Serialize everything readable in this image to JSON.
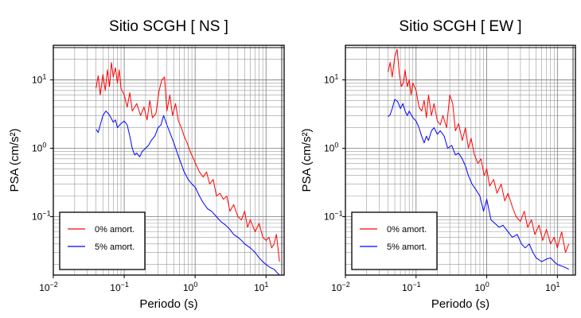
{
  "chart_data": [
    {
      "type": "line",
      "title": "Sitio SCGH [ NS ]",
      "xlabel": "Periodo (s)",
      "ylabel": "PSA (cm/s²)",
      "xscale": "log",
      "yscale": "log",
      "xlim": [
        0.01,
        18
      ],
      "ylim": [
        0.014,
        32
      ],
      "grid": true,
      "legend": "bottom-left",
      "x_ticks": [
        {
          "v": 0.01,
          "b": "10",
          "e": "−2"
        },
        {
          "v": 0.1,
          "b": "10",
          "e": "−1"
        },
        {
          "v": 1,
          "b": "10",
          "e": "0"
        },
        {
          "v": 10,
          "b": "10",
          "e": "1"
        }
      ],
      "y_ticks": [
        {
          "v": 0.1,
          "b": "10",
          "e": "−1"
        },
        {
          "v": 1,
          "b": "10",
          "e": "0"
        },
        {
          "v": 10,
          "b": "10",
          "e": "1"
        }
      ],
      "series": [
        {
          "name": "0% amort.",
          "color": "#ff0000",
          "x": [
            0.04,
            0.043,
            0.046,
            0.05,
            0.054,
            0.058,
            0.062,
            0.066,
            0.07,
            0.075,
            0.08,
            0.085,
            0.09,
            0.1,
            0.11,
            0.12,
            0.13,
            0.15,
            0.17,
            0.19,
            0.21,
            0.23,
            0.25,
            0.28,
            0.31,
            0.34,
            0.37,
            0.4,
            0.44,
            0.48,
            0.53,
            0.58,
            0.64,
            0.7,
            0.77,
            0.85,
            0.95,
            1.05,
            1.15,
            1.3,
            1.45,
            1.6,
            1.8,
            2.0,
            2.25,
            2.5,
            2.8,
            3.1,
            3.5,
            4.0,
            4.5,
            5.0,
            5.5,
            6.0,
            7.0,
            8.0,
            9.0,
            10.0,
            11.0,
            12.0,
            13.0,
            14.0,
            15.5
          ],
          "y": [
            7.5,
            11.5,
            6.0,
            12.0,
            7.0,
            14.0,
            8.0,
            18.0,
            11.0,
            15.0,
            9.0,
            14.0,
            7.5,
            6.0,
            4.0,
            6.5,
            3.5,
            4.5,
            3.0,
            4.0,
            2.6,
            5.0,
            2.8,
            3.2,
            7.0,
            10.0,
            11.0,
            3.5,
            6.0,
            3.0,
            4.5,
            2.5,
            2.0,
            1.5,
            1.2,
            0.9,
            0.7,
            0.55,
            0.45,
            0.38,
            0.45,
            0.3,
            0.35,
            0.2,
            0.22,
            0.18,
            0.2,
            0.12,
            0.15,
            0.1,
            0.09,
            0.12,
            0.07,
            0.09,
            0.06,
            0.08,
            0.05,
            0.045,
            0.05,
            0.035,
            0.04,
            0.055,
            0.022
          ]
        },
        {
          "name": "5% amort.",
          "color": "#0000ff",
          "x": [
            0.04,
            0.043,
            0.046,
            0.05,
            0.055,
            0.06,
            0.065,
            0.07,
            0.075,
            0.08,
            0.09,
            0.1,
            0.11,
            0.12,
            0.13,
            0.14,
            0.15,
            0.165,
            0.18,
            0.2,
            0.22,
            0.24,
            0.27,
            0.3,
            0.33,
            0.36,
            0.4,
            0.45,
            0.5,
            0.55,
            0.6,
            0.7,
            0.8,
            0.9,
            1.0,
            1.15,
            1.3,
            1.5,
            1.7,
            2.0,
            2.3,
            2.7,
            3.1,
            3.5,
            4.0,
            4.5,
            5.0,
            6.0,
            7.0,
            8.0,
            9.0,
            10.0,
            11.5,
            13.0,
            14.5,
            15.5
          ],
          "y": [
            1.9,
            1.7,
            2.2,
            3.0,
            3.5,
            3.2,
            2.8,
            2.4,
            2.6,
            2.0,
            2.3,
            2.5,
            2.2,
            1.5,
            1.0,
            0.8,
            0.85,
            0.75,
            0.9,
            1.0,
            1.1,
            1.3,
            1.5,
            2.0,
            2.2,
            3.0,
            2.2,
            1.6,
            1.2,
            0.9,
            0.7,
            0.45,
            0.35,
            0.3,
            0.27,
            0.2,
            0.16,
            0.13,
            0.12,
            0.1,
            0.085,
            0.075,
            0.065,
            0.055,
            0.05,
            0.045,
            0.04,
            0.035,
            0.03,
            0.025,
            0.022,
            0.02,
            0.018,
            0.017,
            0.015,
            0.014
          ]
        }
      ]
    },
    {
      "type": "line",
      "title": "Sitio SCGH [ EW ]",
      "xlabel": "Periodo (s)",
      "ylabel": "PSA (cm/s²)",
      "xscale": "log",
      "yscale": "log",
      "xlim": [
        0.01,
        18
      ],
      "ylim": [
        0.014,
        32
      ],
      "grid": true,
      "legend": "bottom-left",
      "x_ticks": [
        {
          "v": 0.01,
          "b": "10",
          "e": "−2"
        },
        {
          "v": 0.1,
          "b": "10",
          "e": "−1"
        },
        {
          "v": 1,
          "b": "10",
          "e": "0"
        },
        {
          "v": 10,
          "b": "10",
          "e": "1"
        }
      ],
      "y_ticks": [
        {
          "v": 0.1,
          "b": "10",
          "e": "−1"
        },
        {
          "v": 1,
          "b": "10",
          "e": "0"
        },
        {
          "v": 10,
          "b": "10",
          "e": "1"
        }
      ],
      "series": [
        {
          "name": "0% amort.",
          "color": "#ff0000",
          "x": [
            0.04,
            0.043,
            0.046,
            0.05,
            0.054,
            0.058,
            0.062,
            0.066,
            0.07,
            0.075,
            0.08,
            0.085,
            0.09,
            0.1,
            0.11,
            0.12,
            0.13,
            0.14,
            0.15,
            0.165,
            0.18,
            0.2,
            0.22,
            0.24,
            0.27,
            0.3,
            0.33,
            0.36,
            0.4,
            0.45,
            0.5,
            0.55,
            0.6,
            0.67,
            0.75,
            0.83,
            0.92,
            1.0,
            1.1,
            1.25,
            1.4,
            1.6,
            1.8,
            2.0,
            2.3,
            2.6,
            3.0,
            3.4,
            3.8,
            4.3,
            4.8,
            5.5,
            6.2,
            7.0,
            8.0,
            9.0,
            10.0,
            11.5,
            13.0,
            14.5
          ],
          "y": [
            13.0,
            18.0,
            11.0,
            22.0,
            28.0,
            12.0,
            8.0,
            9.0,
            14.0,
            8.0,
            10.0,
            6.0,
            9.0,
            7.0,
            4.0,
            3.5,
            5.0,
            2.8,
            6.0,
            3.0,
            4.5,
            2.5,
            2.2,
            3.0,
            2.0,
            6.0,
            4.5,
            1.8,
            2.3,
            1.3,
            2.0,
            1.0,
            1.4,
            0.8,
            0.6,
            0.7,
            0.4,
            0.5,
            0.28,
            0.35,
            0.22,
            0.3,
            0.17,
            0.22,
            0.14,
            0.1,
            0.085,
            0.12,
            0.07,
            0.09,
            0.055,
            0.075,
            0.045,
            0.065,
            0.04,
            0.05,
            0.035,
            0.06,
            0.03,
            0.04
          ]
        },
        {
          "name": "5% amort.",
          "color": "#0000ff",
          "x": [
            0.04,
            0.043,
            0.046,
            0.05,
            0.055,
            0.06,
            0.065,
            0.07,
            0.075,
            0.08,
            0.09,
            0.1,
            0.11,
            0.12,
            0.13,
            0.14,
            0.15,
            0.165,
            0.18,
            0.2,
            0.22,
            0.25,
            0.28,
            0.32,
            0.36,
            0.4,
            0.45,
            0.5,
            0.55,
            0.62,
            0.7,
            0.8,
            0.9,
            1.0,
            1.15,
            1.3,
            1.5,
            1.7,
            2.0,
            2.3,
            2.7,
            3.1,
            3.5,
            4.0,
            4.5,
            5.0,
            6.0,
            7.0,
            8.0,
            9.0,
            10.0,
            11.5,
            13.0,
            14.5
          ],
          "y": [
            2.9,
            3.1,
            3.8,
            5.2,
            4.8,
            3.8,
            4.5,
            3.5,
            3.0,
            3.5,
            2.8,
            2.5,
            2.0,
            1.5,
            1.2,
            1.5,
            1.3,
            1.8,
            2.0,
            1.6,
            1.8,
            1.5,
            1.0,
            1.1,
            0.8,
            0.85,
            0.7,
            0.55,
            0.4,
            0.3,
            0.25,
            0.2,
            0.12,
            0.18,
            0.09,
            0.08,
            0.07,
            0.075,
            0.06,
            0.05,
            0.055,
            0.04,
            0.035,
            0.04,
            0.03,
            0.025,
            0.022,
            0.024,
            0.025,
            0.022,
            0.02,
            0.019,
            0.018,
            0.017
          ]
        }
      ]
    }
  ]
}
